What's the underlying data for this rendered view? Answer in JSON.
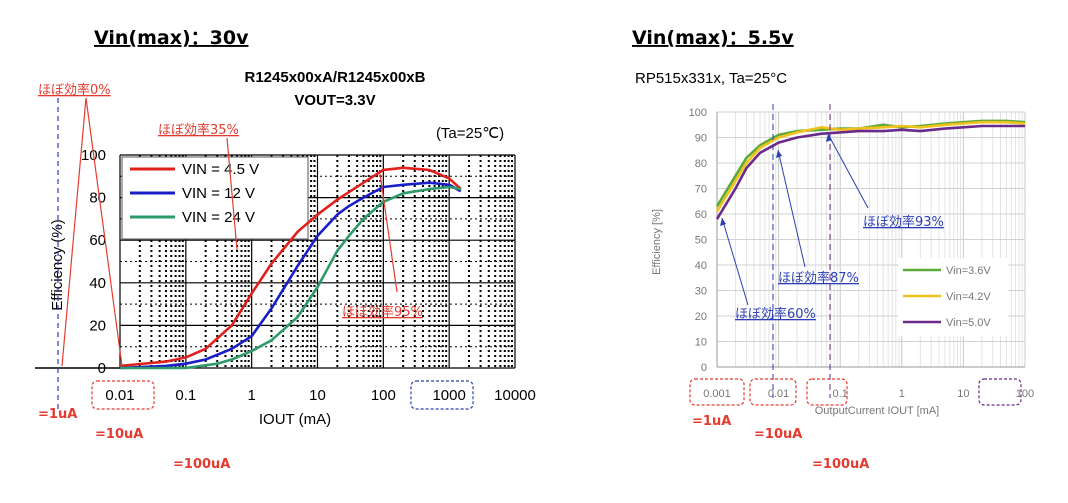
{
  "headings": {
    "left": "Vin(max)：30v",
    "right": "Vin(max)：5.5v"
  },
  "left_annotations": {
    "eff0": "ほぼ効率0%",
    "eff35": "ほぼ効率35%",
    "eff95": "ほぼ効率95%",
    "cur1": "=1uA",
    "cur10": "=10uA",
    "cur100": "=100uA"
  },
  "right_annotations": {
    "eff93": "ほぼ効率93%",
    "eff87": "ほぼ効率87%",
    "eff60": "ほぼ効率60%",
    "cur1": "=1uA",
    "cur10": "=10uA",
    "cur100": "=100uA"
  },
  "colors": {
    "annotation_red": "#e53b2f",
    "annotation_blue": "#2b3fb4"
  },
  "chart_data": [
    {
      "type": "line",
      "title": "R1245x00xA/R1245x00xB",
      "subtitle": "VOUT=3.3V",
      "condition": "(Ta=25℃)",
      "xlabel": "IOUT (mA)",
      "ylabel": "Efficiency (%)",
      "xscale": "log",
      "xlim": [
        0.01,
        10000
      ],
      "ylim": [
        0,
        100
      ],
      "xticks": [
        "0.01",
        "0.1",
        "1",
        "10",
        "100",
        "1000",
        "10000"
      ],
      "yticks": [
        "0",
        "20",
        "40",
        "60",
        "80",
        "100"
      ],
      "grid": true,
      "legend": "top-left",
      "series": [
        {
          "name": "VIN =  4.5 V",
          "color": "#e0201b",
          "x": [
            0.01,
            0.05,
            0.1,
            0.2,
            0.5,
            1,
            2,
            5,
            10,
            20,
            50,
            100,
            200,
            500,
            1000,
            1500
          ],
          "y": [
            1,
            3,
            5,
            9,
            20,
            35,
            49,
            64,
            72,
            79,
            87,
            93,
            94,
            93,
            89,
            84
          ]
        },
        {
          "name": "VIN =  12 V",
          "color": "#1a1ec8",
          "x": [
            0.01,
            0.05,
            0.1,
            0.2,
            0.5,
            1,
            2,
            5,
            10,
            20,
            30,
            50,
            100,
            200,
            500,
            1000,
            1500
          ],
          "y": [
            0,
            1,
            2,
            4,
            9,
            15,
            28,
            48,
            62,
            72,
            76,
            80,
            85,
            86,
            87,
            86,
            83
          ]
        },
        {
          "name": "VIN =  24 V",
          "color": "#2e9a6a",
          "x": [
            0.01,
            0.1,
            0.3,
            0.5,
            1,
            2,
            5,
            10,
            20,
            30,
            50,
            100,
            200,
            500,
            1000,
            1500
          ],
          "y": [
            0,
            0,
            2,
            4,
            8,
            13,
            24,
            38,
            55,
            62,
            70,
            78,
            82,
            84,
            85,
            84
          ]
        }
      ]
    },
    {
      "type": "line",
      "title": "RP515x331x, Ta=25°C",
      "xlabel": "OutputCurrent  IOUT [mA]",
      "ylabel": "Efficiency [%]",
      "xscale": "log",
      "xlim": [
        0.001,
        100
      ],
      "ylim": [
        0,
        100
      ],
      "xticks": [
        "0.001",
        "0.01",
        "0.1",
        "1",
        "10",
        "100"
      ],
      "yticks": [
        "0",
        "10",
        "20",
        "30",
        "40",
        "50",
        "60",
        "70",
        "80",
        "90",
        "100"
      ],
      "grid": true,
      "legend": "bottom-right",
      "series": [
        {
          "name": "Vin=3.6V",
          "color": "#5aa93a",
          "x": [
            0.001,
            0.002,
            0.003,
            0.005,
            0.01,
            0.02,
            0.05,
            0.1,
            0.2,
            0.5,
            1,
            2,
            5,
            10,
            20,
            50,
            100
          ],
          "y": [
            63,
            75,
            82,
            87,
            91,
            92.5,
            93,
            93.5,
            93.5,
            95,
            94,
            94.5,
            95.5,
            96,
            96.5,
            96.5,
            96
          ]
        },
        {
          "name": "Vin=4.2V",
          "color": "#f2c21c",
          "x": [
            0.001,
            0.002,
            0.003,
            0.005,
            0.01,
            0.02,
            0.05,
            0.1,
            0.2,
            0.5,
            1,
            2,
            5,
            10,
            20,
            50,
            100
          ],
          "y": [
            61,
            73,
            80,
            86,
            90,
            92,
            94,
            93,
            93.5,
            94,
            94.5,
            94,
            95,
            95.5,
            96,
            96,
            95.5
          ]
        },
        {
          "name": "Vin=5.0V",
          "color": "#6a2a8a",
          "x": [
            0.001,
            0.002,
            0.003,
            0.005,
            0.01,
            0.02,
            0.05,
            0.1,
            0.2,
            0.5,
            1,
            2,
            5,
            10,
            20,
            50,
            100
          ],
          "y": [
            58,
            70,
            78,
            84,
            88,
            90,
            91.5,
            92,
            92.5,
            92.5,
            93,
            92.5,
            93.5,
            94,
            94.5,
            94.5,
            94.5
          ]
        }
      ]
    }
  ]
}
